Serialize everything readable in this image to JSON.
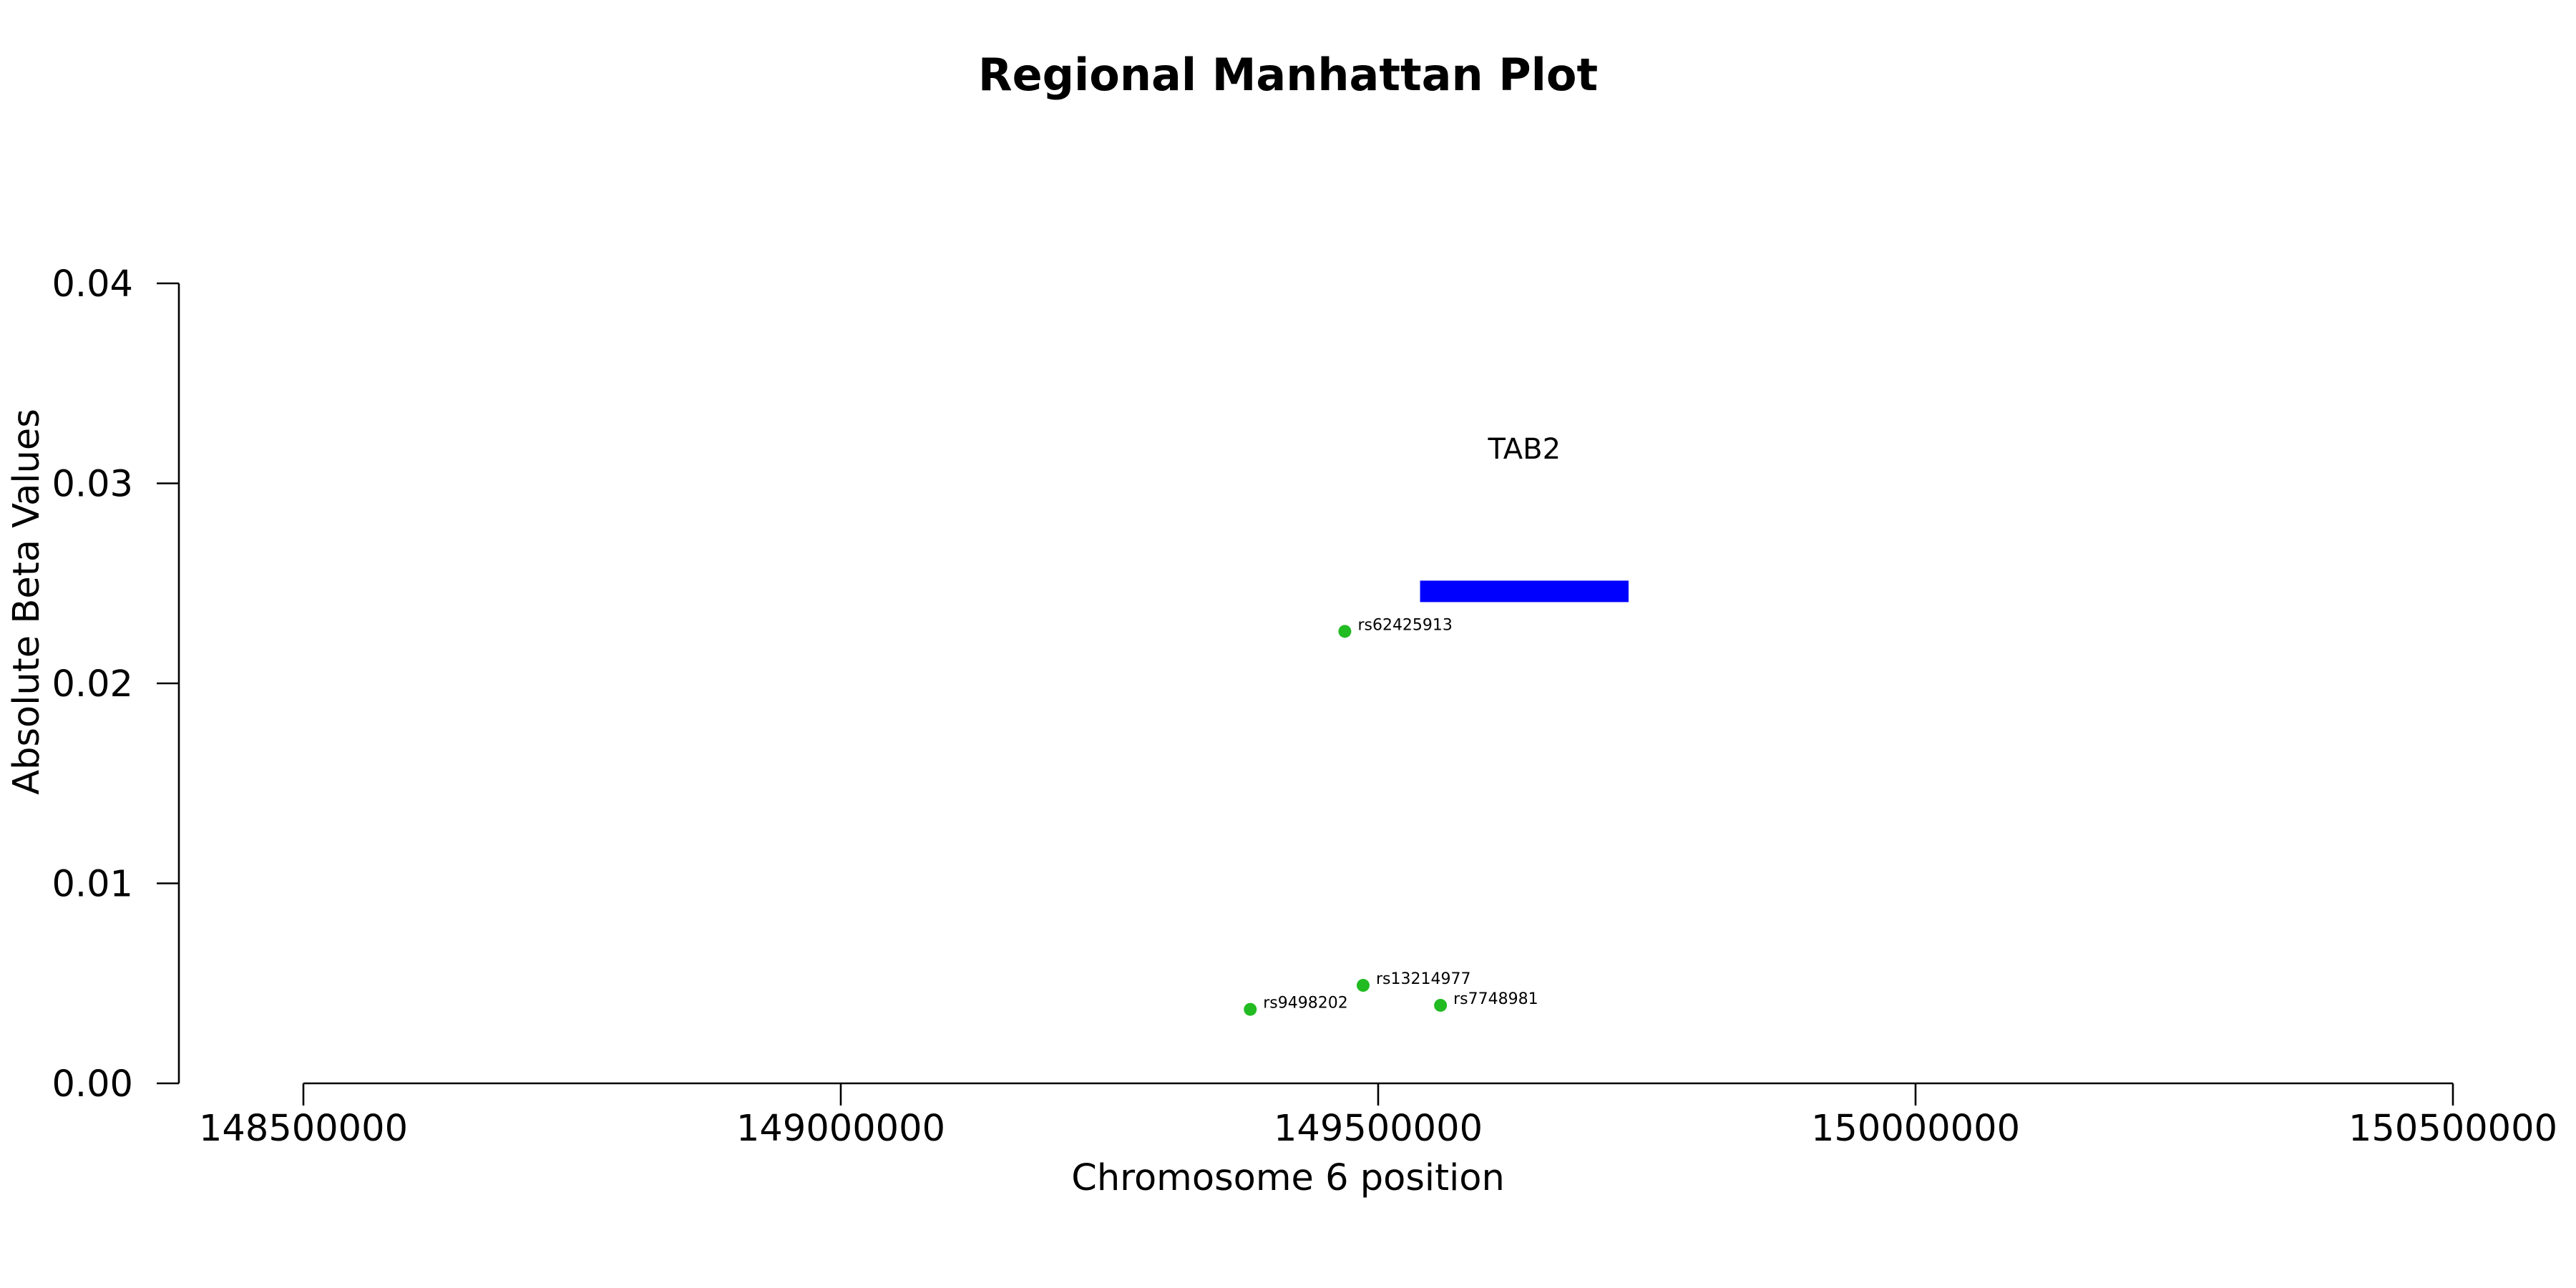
{
  "chart_data": {
    "type": "scatter",
    "title": "Regional Manhattan Plot",
    "xlabel": "Chromosome 6 position",
    "ylabel": "Absolute Beta Values",
    "xlim": [
      148500000,
      150500000
    ],
    "ylim": [
      0.0,
      0.04
    ],
    "x_ticks": [
      148500000,
      149000000,
      149500000,
      150000000,
      150500000
    ],
    "x_tick_labels": [
      "148500000",
      "149000000",
      "149500000",
      "150000000",
      "150500000"
    ],
    "y_ticks": [
      0.0,
      0.01,
      0.02,
      0.03,
      0.04
    ],
    "y_tick_labels": [
      "0.00",
      "0.01",
      "0.02",
      "0.03",
      "0.04"
    ],
    "grid": false,
    "point_color": "#22bb22",
    "gene_color": "#0000ff",
    "points": [
      {
        "label": "rs62425913",
        "x": 149469000,
        "y": 0.0226
      },
      {
        "label": "rs9498202",
        "x": 149381000,
        "y": 0.0037
      },
      {
        "label": "rs13214977",
        "x": 149486000,
        "y": 0.0049
      },
      {
        "label": "rs7748981",
        "x": 149558000,
        "y": 0.0039
      }
    ],
    "genes": [
      {
        "name": "TAB2",
        "start": 149539000,
        "end": 149733000,
        "y": 0.0246
      }
    ]
  }
}
